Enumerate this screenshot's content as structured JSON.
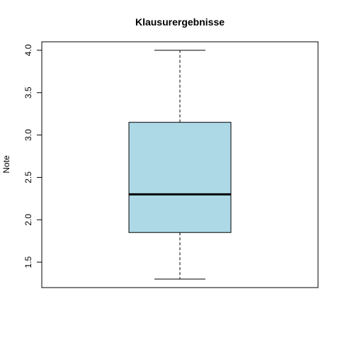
{
  "chart_data": {
    "type": "boxplot",
    "title": "Klausurergebnisse",
    "xlabel": "",
    "ylabel": "Note",
    "ylim": [
      1.2,
      4.1
    ],
    "yticks": [
      1.5,
      2.0,
      2.5,
      3.0,
      3.5,
      4.0
    ],
    "ytick_labels": [
      "1.5",
      "2.0",
      "2.5",
      "3.0",
      "3.5",
      "4.0"
    ],
    "grid": false,
    "box": {
      "min": 1.3,
      "q1": 1.85,
      "median": 2.3,
      "q3": 3.15,
      "max": 4.0,
      "fill_color": "#add8e6"
    }
  }
}
